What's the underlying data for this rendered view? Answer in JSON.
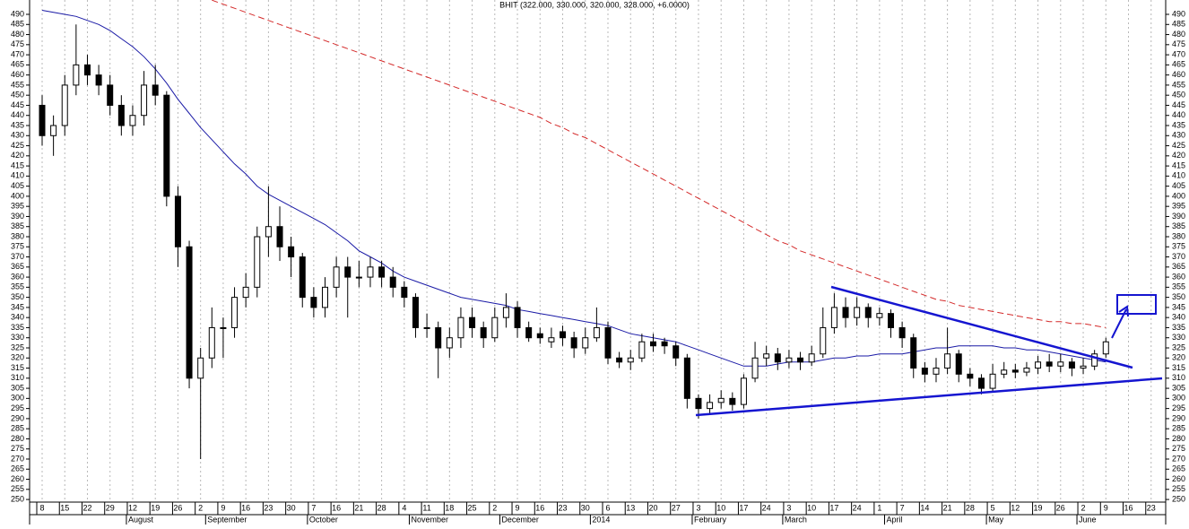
{
  "chart_data": {
    "type": "candlestick",
    "title": "BHIT (322.000, 330.000, 320.000, 328.000, +6.0000)",
    "categories": [
      "8",
      null,
      "15",
      null,
      "22",
      null,
      "29",
      null,
      "12",
      null,
      "19",
      null,
      "26",
      null,
      "2",
      null,
      "9",
      null,
      "16",
      null,
      "23",
      null,
      "30",
      null,
      "7",
      null,
      "16",
      null,
      "21",
      null,
      "28",
      null,
      "4",
      null,
      "11",
      null,
      "18",
      null,
      "25",
      null,
      "2",
      null,
      "9",
      null,
      "16",
      null,
      "23",
      null,
      "30",
      null,
      "6",
      null,
      "13",
      null,
      "20",
      null,
      "27",
      null,
      "3",
      null,
      "10",
      null,
      "17",
      null,
      "24",
      null,
      "3",
      null,
      "10",
      null,
      "17",
      null,
      "24",
      null,
      "1",
      null,
      "7",
      null,
      "14",
      null,
      "21",
      null,
      "28",
      null,
      "5",
      null,
      "12",
      null,
      "19",
      null,
      "26",
      null,
      "2",
      null,
      "9",
      null,
      "16",
      null,
      "23",
      null
    ],
    "month_categories": [
      null,
      null,
      null,
      null,
      null,
      null,
      null,
      null,
      "August",
      null,
      null,
      null,
      null,
      null,
      null,
      "September",
      null,
      null,
      null,
      null,
      null,
      null,
      null,
      null,
      "October",
      null,
      null,
      null,
      null,
      null,
      null,
      null,
      null,
      "November",
      null,
      null,
      null,
      null,
      null,
      null,
      null,
      "December",
      null,
      null,
      null,
      null,
      null,
      null,
      null,
      "2014",
      null,
      null,
      null,
      null,
      null,
      null,
      null,
      null,
      "February",
      null,
      null,
      null,
      null,
      null,
      null,
      null,
      "March",
      null,
      null,
      null,
      null,
      null,
      null,
      null,
      null,
      "April",
      null,
      null,
      null,
      null,
      null,
      null,
      null,
      null,
      "May",
      null,
      null,
      null,
      null,
      null,
      null,
      null,
      "June",
      null,
      null,
      null,
      null,
      null,
      null,
      null
    ],
    "open": [
      445,
      430,
      435,
      455,
      465,
      460,
      455,
      445,
      435,
      440,
      455,
      450,
      400,
      375,
      310,
      320,
      335,
      335,
      350,
      355,
      380,
      385,
      375,
      370,
      350,
      345,
      355,
      365,
      360,
      360,
      365,
      360,
      355,
      350,
      335,
      335,
      325,
      330,
      340,
      335,
      330,
      340,
      345,
      335,
      332,
      328,
      333,
      330,
      325,
      330,
      335,
      320,
      318,
      320,
      328,
      328,
      326,
      320,
      300,
      295,
      298,
      300,
      297,
      310,
      320,
      322,
      318,
      320,
      318,
      322,
      335,
      345,
      340,
      345,
      340,
      342,
      335,
      330,
      315,
      312,
      315,
      322,
      312,
      310,
      305,
      312,
      314,
      313,
      315,
      318,
      316,
      318,
      315,
      316,
      322,
      null,
      null,
      null,
      null,
      null
    ],
    "high": [
      450,
      440,
      460,
      485,
      470,
      465,
      460,
      450,
      445,
      462,
      465,
      452,
      405,
      378,
      325,
      345,
      340,
      355,
      362,
      385,
      405,
      395,
      380,
      372,
      355,
      360,
      370,
      370,
      368,
      370,
      368,
      365,
      358,
      352,
      342,
      338,
      335,
      345,
      345,
      338,
      345,
      352,
      348,
      338,
      335,
      335,
      336,
      333,
      335,
      345,
      338,
      323,
      324,
      332,
      332,
      330,
      328,
      322,
      302,
      302,
      304,
      303,
      312,
      328,
      326,
      325,
      324,
      323,
      326,
      345,
      352,
      350,
      350,
      347,
      345,
      344,
      338,
      332,
      318,
      320,
      335,
      324,
      315,
      312,
      317,
      318,
      317,
      318,
      321,
      322,
      322,
      320,
      320,
      324,
      330,
      null,
      null,
      null,
      null,
      null
    ],
    "low": [
      425,
      420,
      430,
      450,
      455,
      450,
      440,
      430,
      430,
      435,
      445,
      395,
      365,
      305,
      270,
      315,
      320,
      330,
      345,
      350,
      370,
      368,
      360,
      345,
      340,
      340,
      350,
      340,
      355,
      355,
      355,
      350,
      345,
      330,
      330,
      310,
      320,
      325,
      330,
      325,
      328,
      335,
      330,
      328,
      327,
      325,
      326,
      320,
      322,
      328,
      317,
      315,
      314,
      318,
      323,
      322,
      316,
      295,
      290,
      292,
      295,
      294,
      295,
      308,
      316,
      314,
      315,
      314,
      316,
      320,
      332,
      335,
      336,
      335,
      336,
      330,
      325,
      310,
      308,
      308,
      312,
      308,
      306,
      302,
      303,
      310,
      310,
      311,
      312,
      313,
      313,
      311,
      312,
      314,
      320,
      null,
      null,
      null,
      null,
      null
    ],
    "close": [
      430,
      435,
      455,
      465,
      460,
      455,
      445,
      435,
      440,
      455,
      450,
      400,
      375,
      310,
      320,
      335,
      335,
      350,
      355,
      380,
      385,
      375,
      370,
      350,
      345,
      355,
      365,
      360,
      360,
      365,
      360,
      355,
      350,
      335,
      335,
      325,
      330,
      340,
      335,
      330,
      340,
      345,
      335,
      330,
      330,
      330,
      330,
      325,
      330,
      335,
      320,
      318,
      320,
      328,
      326,
      326,
      320,
      300,
      295,
      298,
      300,
      297,
      310,
      320,
      322,
      318,
      320,
      318,
      322,
      335,
      345,
      340,
      345,
      340,
      342,
      335,
      330,
      315,
      312,
      315,
      322,
      312,
      310,
      305,
      312,
      314,
      313,
      315,
      318,
      316,
      318,
      315,
      316,
      322,
      328,
      null,
      null,
      null,
      null,
      null
    ],
    "up_color": "#ffffff",
    "down_color": "#000000",
    "lines": [
      {
        "color": "#1a1aa6",
        "dashed": false,
        "values": [
          492,
          491,
          490,
          489,
          487,
          485,
          482,
          478,
          474,
          469,
          463,
          456,
          448,
          441,
          434,
          428,
          422,
          416,
          411,
          405,
          401,
          398,
          395,
          392,
          389,
          386,
          382,
          378,
          373,
          370,
          367,
          363,
          360,
          358,
          356,
          354,
          352,
          350,
          349,
          348,
          347,
          346,
          344,
          343,
          342,
          341,
          340,
          339,
          338,
          337,
          336,
          334,
          332,
          331,
          330,
          329,
          328,
          326,
          324,
          322,
          320,
          318,
          316,
          316,
          316,
          317,
          318,
          318,
          318,
          319,
          320,
          320,
          321,
          321,
          322,
          322,
          322,
          323,
          324,
          325,
          325,
          326,
          326,
          326,
          326,
          325,
          325,
          324,
          324,
          323,
          322,
          321,
          320,
          319,
          318,
          null,
          null,
          null,
          null,
          null
        ]
      },
      {
        "color": "#d42a2a",
        "dashed": true,
        "values": [
          null,
          null,
          null,
          null,
          null,
          null,
          null,
          null,
          null,
          null,
          null,
          null,
          null,
          null,
          null,
          497,
          495,
          493,
          491,
          489,
          487,
          485,
          483,
          481,
          479,
          477,
          475,
          473,
          471,
          469,
          467,
          465,
          463,
          461,
          459,
          457,
          455,
          453,
          451,
          449,
          447,
          445,
          443,
          441,
          439,
          436,
          434,
          431,
          429,
          426,
          423,
          420,
          417,
          414,
          411,
          408,
          405,
          402,
          399,
          396,
          393,
          390,
          387,
          384,
          381,
          378,
          376,
          373,
          371,
          369,
          367,
          365,
          363,
          361,
          359,
          357,
          355,
          353,
          351,
          349,
          348,
          346,
          345,
          344,
          343,
          342,
          341,
          340,
          339,
          338,
          338,
          337,
          337,
          336,
          335,
          null,
          null,
          null,
          null,
          null
        ]
      }
    ],
    "ylim": [
      248.7,
      497.1
    ],
    "yticks": [
      250,
      255,
      260,
      265,
      270,
      275,
      280,
      285,
      290,
      295,
      300,
      305,
      310,
      315,
      320,
      325,
      330,
      335,
      340,
      345,
      350,
      355,
      360,
      365,
      370,
      375,
      380,
      385,
      390,
      395,
      400,
      405,
      410,
      415,
      420,
      425,
      430,
      435,
      440,
      445,
      450,
      455,
      460,
      465,
      470,
      475,
      480,
      485,
      490
    ],
    "grid": true
  }
}
